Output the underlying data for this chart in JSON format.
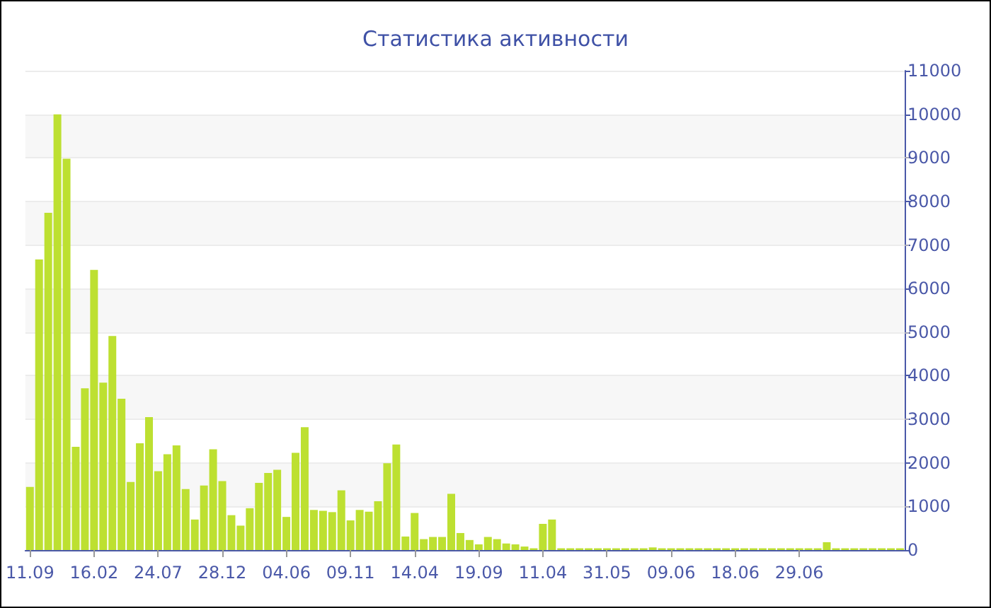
{
  "chart_data": {
    "type": "bar",
    "title": "Статистика активности",
    "categories": [
      "11.09",
      null,
      null,
      null,
      null,
      null,
      null,
      "16.02",
      null,
      null,
      null,
      null,
      null,
      null,
      "24.07",
      null,
      null,
      null,
      null,
      null,
      null,
      "28.12",
      null,
      null,
      null,
      null,
      null,
      null,
      "04.06",
      null,
      null,
      null,
      null,
      null,
      null,
      "09.11",
      null,
      null,
      null,
      null,
      null,
      null,
      "14.04",
      null,
      null,
      null,
      null,
      null,
      null,
      "19.09",
      null,
      null,
      null,
      null,
      null,
      null,
      "11.04",
      null,
      null,
      null,
      null,
      null,
      null,
      "31.05",
      null,
      null,
      null,
      null,
      null,
      null,
      "09.06",
      null,
      null,
      null,
      null,
      null,
      null,
      "18.06",
      null,
      null,
      null,
      null,
      null,
      null,
      "29.06",
      null,
      null,
      null,
      null,
      null,
      null,
      null,
      null,
      null,
      null,
      null
    ],
    "values": [
      1450,
      6670,
      7740,
      10000,
      8980,
      2370,
      3710,
      6430,
      3840,
      4910,
      3470,
      1560,
      2450,
      3050,
      1810,
      2200,
      2400,
      1400,
      700,
      1480,
      2310,
      1580,
      800,
      560,
      960,
      1540,
      1770,
      1840,
      760,
      2230,
      2820,
      920,
      900,
      870,
      1370,
      680,
      920,
      880,
      1120,
      1990,
      2420,
      310,
      850,
      250,
      300,
      300,
      1290,
      390,
      230,
      130,
      300,
      250,
      150,
      130,
      80,
      40,
      600,
      700,
      40,
      40,
      40,
      40,
      40,
      40,
      40,
      40,
      40,
      40,
      60,
      40,
      40,
      40,
      40,
      40,
      40,
      40,
      40,
      40,
      40,
      40,
      40,
      40,
      40,
      40,
      40,
      40,
      40,
      180,
      40,
      40,
      40,
      40,
      40,
      40,
      40,
      40
    ],
    "color": "#bde031",
    "ylim": [
      0,
      11000
    ],
    "yticks": [
      0,
      1000,
      2000,
      3000,
      4000,
      5000,
      6000,
      7000,
      8000,
      9000,
      10000,
      11000
    ],
    "grid": "y"
  }
}
